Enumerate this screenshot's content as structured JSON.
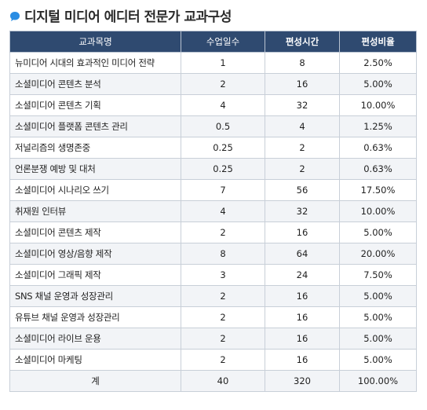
{
  "page": {
    "title": "디지털 미디어 에디터 전문가 교과구성",
    "accent_color": "#2a8de3",
    "header_bg_color": "#2f4a70",
    "title_icon": "speech-bubble-icon"
  },
  "table": {
    "headers": [
      "교과목명",
      "수업일수",
      "편성시간",
      "편성비율"
    ],
    "rows": [
      {
        "subject": "뉴미디어 시대의 효과적인 미디어 전략",
        "days": "1",
        "hours": "8",
        "ratio": "2.50%"
      },
      {
        "subject": "소셜미디어 콘텐츠 분석",
        "days": "2",
        "hours": "16",
        "ratio": "5.00%"
      },
      {
        "subject": "소셜미디어 콘텐츠 기획",
        "days": "4",
        "hours": "32",
        "ratio": "10.00%"
      },
      {
        "subject": "소셜미디어 플랫폼 콘텐츠 관리",
        "days": "0.5",
        "hours": "4",
        "ratio": "1.25%"
      },
      {
        "subject": "저널리즘의 생명존중",
        "days": "0.25",
        "hours": "2",
        "ratio": "0.63%"
      },
      {
        "subject": "언론분쟁 예방 및 대처",
        "days": "0.25",
        "hours": "2",
        "ratio": "0.63%"
      },
      {
        "subject": "소셜미디어 시나리오 쓰기",
        "days": "7",
        "hours": "56",
        "ratio": "17.50%"
      },
      {
        "subject": "취재원 인터뷰",
        "days": "4",
        "hours": "32",
        "ratio": "10.00%"
      },
      {
        "subject": "소셜미디어 콘텐츠 제작",
        "days": "2",
        "hours": "16",
        "ratio": "5.00%"
      },
      {
        "subject": "소셜미디어 영상/음향 제작",
        "days": "8",
        "hours": "64",
        "ratio": "20.00%"
      },
      {
        "subject": "소셜미디어 그래픽 제작",
        "days": "3",
        "hours": "24",
        "ratio": "7.50%"
      },
      {
        "subject": "SNS 채널 운영과 성장관리",
        "days": "2",
        "hours": "16",
        "ratio": "5.00%"
      },
      {
        "subject": "유튜브 채널 운영과 성장관리",
        "days": "2",
        "hours": "16",
        "ratio": "5.00%"
      },
      {
        "subject": "소셜미디어 라이브 운용",
        "days": "2",
        "hours": "16",
        "ratio": "5.00%"
      },
      {
        "subject": "소셜미디어 마케팅",
        "days": "2",
        "hours": "16",
        "ratio": "5.00%"
      }
    ],
    "total": {
      "label": "계",
      "days": "40",
      "hours": "320",
      "ratio": "100.00%"
    }
  }
}
